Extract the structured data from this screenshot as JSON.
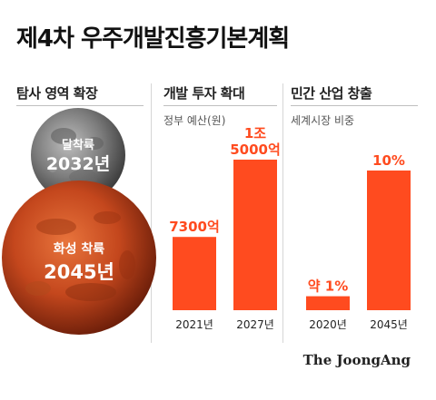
{
  "title": "제4차 우주개발진흥기본계획",
  "sections": {
    "exploration": {
      "heading": "탐사 영역 확장",
      "moon": {
        "label": "달착륙",
        "year": "2032년"
      },
      "mars": {
        "label": "화성 착륙",
        "year": "2045년"
      }
    },
    "investment": {
      "heading": "개발 투자 확대",
      "subtitle": "정부 예산(원)"
    },
    "industry": {
      "heading": "민간 산업 창출",
      "subtitle": "세계시장 비중"
    }
  },
  "colors": {
    "bar": "#ff4b1f",
    "label": "#ff4b1f"
  },
  "chart_data": [
    {
      "type": "bar",
      "title": "개발 투자 확대",
      "subtitle": "정부 예산(원)",
      "categories": [
        "2021년",
        "2027년"
      ],
      "values": [
        7300,
        15000
      ],
      "unit": "억원",
      "data_labels": [
        "7300억",
        "1조\n5000억"
      ]
    },
    {
      "type": "bar",
      "title": "민간 산업 창출",
      "subtitle": "세계시장 비중",
      "categories": [
        "2020년",
        "2045년"
      ],
      "values": [
        1,
        10
      ],
      "unit": "%",
      "data_labels": [
        "약 1%",
        "10%"
      ]
    }
  ],
  "brand": "The JoongAng"
}
